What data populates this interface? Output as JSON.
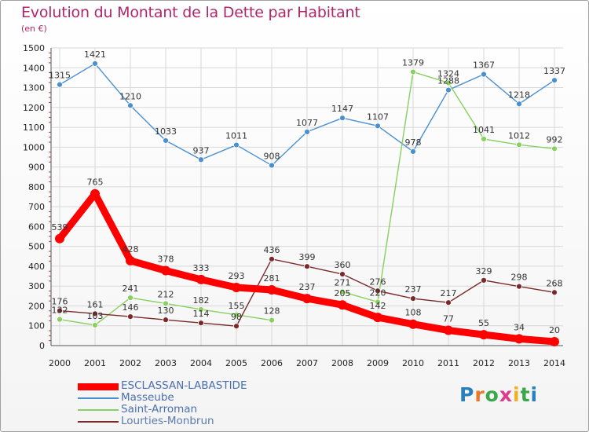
{
  "header": {
    "title": "Evolution du Montant de la Dette par Habitant",
    "unit": "(en €)"
  },
  "logo": {
    "letters": [
      "P",
      "r",
      "o",
      "x",
      "i",
      "t",
      "i"
    ],
    "colors": [
      "#2a7fc0",
      "#e8782a",
      "#3aa84a",
      "#e03a8a",
      "#f0b020",
      "#3aa84a",
      "#2a7fc0"
    ]
  },
  "chart_data": {
    "type": "line",
    "x": [
      "2000",
      "2001",
      "2002",
      "2003",
      "2004",
      "2005",
      "2006",
      "2007",
      "2008",
      "2009",
      "2010",
      "2011",
      "2012",
      "2013",
      "2014"
    ],
    "ylim": [
      0,
      1500
    ],
    "yticks": [
      0,
      100,
      200,
      300,
      400,
      500,
      600,
      700,
      800,
      900,
      1000,
      1100,
      1200,
      1300,
      1400,
      1500
    ],
    "grid": true,
    "legend_position": "bottom-left",
    "series": [
      {
        "name": "ESCLASSAN-LABASTIDE",
        "color": "#ff0000",
        "emphasis": true,
        "values": [
          539,
          765,
          428,
          378,
          333,
          293,
          281,
          237,
          205,
          142,
          108,
          77,
          55,
          34,
          20
        ],
        "labels": [
          "539",
          "765",
          "428",
          "378",
          "333",
          "293",
          "281",
          "237",
          "205",
          "142",
          "108",
          "77",
          "55",
          "34",
          "20"
        ]
      },
      {
        "name": "Masseube",
        "color": "#4a90d0",
        "emphasis": false,
        "values": [
          1315,
          1421,
          1210,
          1033,
          937,
          1011,
          908,
          1077,
          1147,
          1107,
          978,
          1288,
          1367,
          1218,
          1337
        ],
        "labels": [
          "1315",
          "1421",
          "1210",
          "1033",
          "937",
          "1011",
          "908",
          "1077",
          "1147",
          "1107",
          "978",
          "1288",
          "1367",
          "1218",
          "1337"
        ]
      },
      {
        "name": "Saint-Arroman",
        "color": "#88d060",
        "emphasis": false,
        "values": [
          132,
          103,
          241,
          212,
          182,
          155,
          128,
          null,
          271,
          220,
          1379,
          1324,
          1041,
          1012,
          992
        ],
        "labels": [
          "132",
          "103",
          "241",
          "212",
          "182",
          "155",
          "128",
          "",
          "271",
          "220",
          "1379",
          "1324",
          "1041",
          "1012",
          "992"
        ]
      },
      {
        "name": "Lourties-Monbrun",
        "color": "#7a2a2a",
        "emphasis": false,
        "values": [
          176,
          161,
          146,
          130,
          114,
          98,
          436,
          399,
          360,
          276,
          237,
          217,
          329,
          298,
          268
        ],
        "labels": [
          "176",
          "161",
          "146",
          "130",
          "114",
          "98",
          "436",
          "399",
          "360",
          "276",
          "237",
          "217",
          "329",
          "298",
          "268"
        ]
      }
    ]
  }
}
